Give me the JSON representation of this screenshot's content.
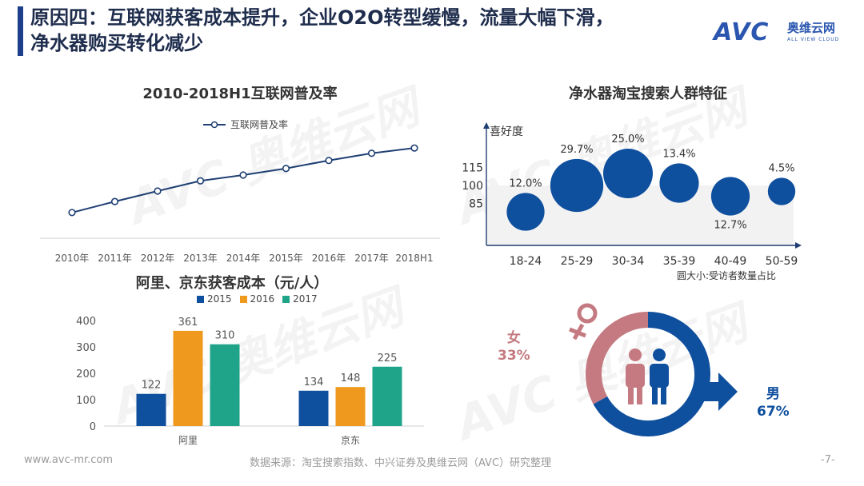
{
  "header": {
    "title": "原因四：互联网获客成本提升，企业O2O转型缓慢，流量大幅下滑，\n净水器购买转化减少",
    "logo_text": "AVC",
    "logo_cn": "奥维云网",
    "logo_en": "ALL VIEW CLOUD"
  },
  "colors": {
    "accent": "#1e3f8c",
    "blue": "#0e4f9e",
    "orange": "#ef9a1f",
    "teal": "#1fa48a",
    "pink": "#c47a80"
  },
  "watermark": "AVC 奥维云网",
  "chart_data": [
    {
      "id": "internet-penetration",
      "type": "line",
      "title": "2010-2018H1互联网普及率",
      "legend": [
        "互联网普及率"
      ],
      "categories": [
        "2010年",
        "2011年",
        "2012年",
        "2013年",
        "2014年",
        "2015年",
        "2016年",
        "2017年",
        "2018H1"
      ],
      "series": [
        {
          "name": "互联网普及率",
          "values": [
            34.3,
            38.3,
            42.1,
            45.8,
            47.9,
            50.3,
            53.2,
            55.8,
            57.7
          ]
        }
      ],
      "ylim": [
        25,
        65
      ],
      "grid": false
    },
    {
      "id": "acquisition-cost",
      "type": "bar",
      "title": "阿里、京东获客成本（元/人）",
      "categories": [
        "阿里",
        "京东"
      ],
      "series": [
        {
          "name": "2015",
          "values": [
            122,
            134
          ]
        },
        {
          "name": "2016",
          "values": [
            361,
            148
          ]
        },
        {
          "name": "2017",
          "values": [
            310,
            225
          ]
        }
      ],
      "yticks": [
        "0",
        "100",
        "200",
        "300",
        "400"
      ],
      "ylim": [
        0,
        400
      ]
    },
    {
      "id": "taobao-bubble",
      "type": "scatter",
      "title": "净水器淘宝搜索人群特征",
      "ylabel": "喜好度",
      "note": "圆大小:受访者数量占比",
      "categories": [
        "18-24",
        "25-29",
        "30-34",
        "35-39",
        "40-49",
        "50-59"
      ],
      "yticks": [
        "85",
        "100",
        "115"
      ],
      "points": [
        {
          "x": "18-24",
          "y": 78,
          "size": 12.0,
          "label": "12.0%"
        },
        {
          "x": "25-29",
          "y": 100,
          "size": 29.7,
          "label": "29.7%"
        },
        {
          "x": "30-34",
          "y": 110,
          "size": 25.0,
          "label": "25.0%"
        },
        {
          "x": "35-39",
          "y": 102,
          "size": 13.4,
          "label": "13.4%"
        },
        {
          "x": "40-49",
          "y": 91,
          "size": 12.7,
          "label": "12.7%"
        },
        {
          "x": "50-59",
          "y": 95,
          "size": 4.5,
          "label": "4.5%"
        }
      ]
    },
    {
      "id": "gender",
      "type": "pie",
      "categories": [
        "女",
        "男"
      ],
      "values": [
        33,
        67
      ],
      "labels": [
        "33%",
        "67%"
      ]
    }
  ],
  "footer": {
    "website": "www.avc-mr.com",
    "source": "数据来源：淘宝搜索指数、中兴证券及奥维云网（AVC）研究整理",
    "page": "-7-"
  }
}
